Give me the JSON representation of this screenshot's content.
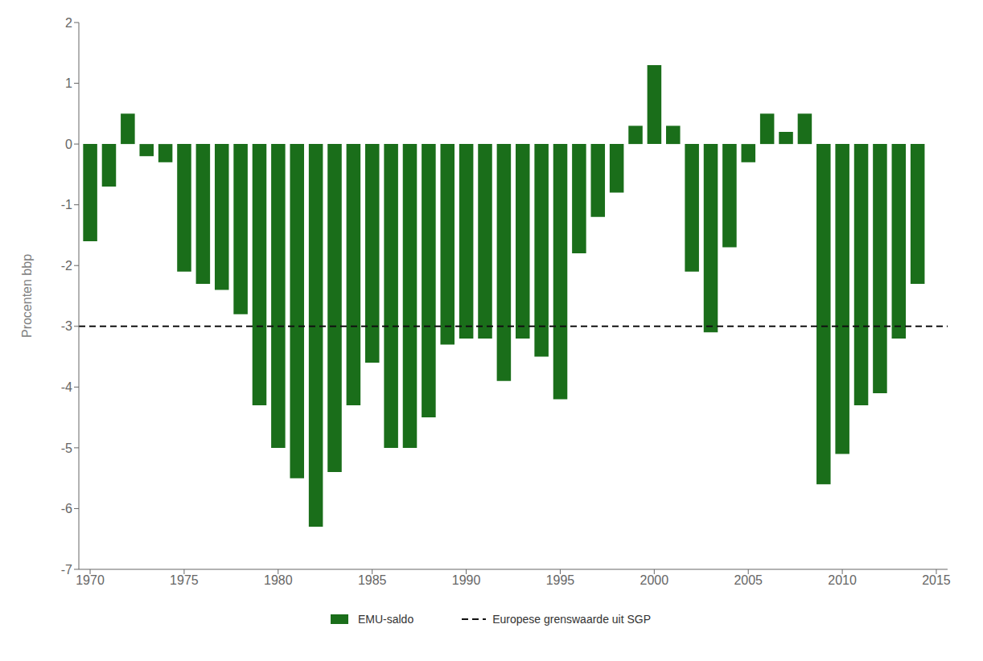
{
  "chart_data": {
    "type": "bar",
    "x": [
      1970,
      1971,
      1972,
      1973,
      1974,
      1975,
      1976,
      1977,
      1978,
      1979,
      1980,
      1981,
      1982,
      1983,
      1984,
      1985,
      1986,
      1987,
      1988,
      1989,
      1990,
      1991,
      1992,
      1993,
      1994,
      1995,
      1996,
      1997,
      1998,
      1999,
      2000,
      2001,
      2002,
      2003,
      2004,
      2005,
      2006,
      2007,
      2008,
      2009,
      2010,
      2011,
      2012,
      2013,
      2014
    ],
    "series": [
      {
        "name": "EMU-saldo",
        "type": "bar",
        "color": "#1a6e1a",
        "values": [
          -1.6,
          -0.7,
          0.5,
          -0.2,
          -0.3,
          -2.1,
          -2.3,
          -2.4,
          -2.8,
          -4.3,
          -5.0,
          -5.5,
          -6.3,
          -5.4,
          -4.3,
          -3.6,
          -5.0,
          -5.0,
          -4.5,
          -3.3,
          -3.2,
          -3.2,
          -3.9,
          -3.2,
          -3.5,
          -4.2,
          -1.8,
          -1.2,
          -0.8,
          0.3,
          1.3,
          0.3,
          -2.1,
          -3.1,
          -1.7,
          -0.3,
          0.5,
          0.2,
          0.5,
          -5.6,
          -5.1,
          -4.3,
          -4.1,
          -3.2,
          -2.3
        ]
      }
    ],
    "hlines": [
      {
        "y": -3,
        "name": "Europese grenswaarde uit SGP",
        "color": "#111111",
        "line_style": "dashed"
      }
    ],
    "ylabel": "Procenten bbp",
    "xlim": [
      1969.4,
      2015.6
    ],
    "xticks": [
      1970,
      1975,
      1980,
      1985,
      1990,
      1995,
      2000,
      2005,
      2010,
      2015
    ],
    "ylim": [
      -7,
      2
    ],
    "yticks": [
      -7,
      -6,
      -5,
      -4,
      -3,
      -2,
      -1,
      0,
      1,
      2
    ],
    "grid": false,
    "legend": "bottom"
  }
}
